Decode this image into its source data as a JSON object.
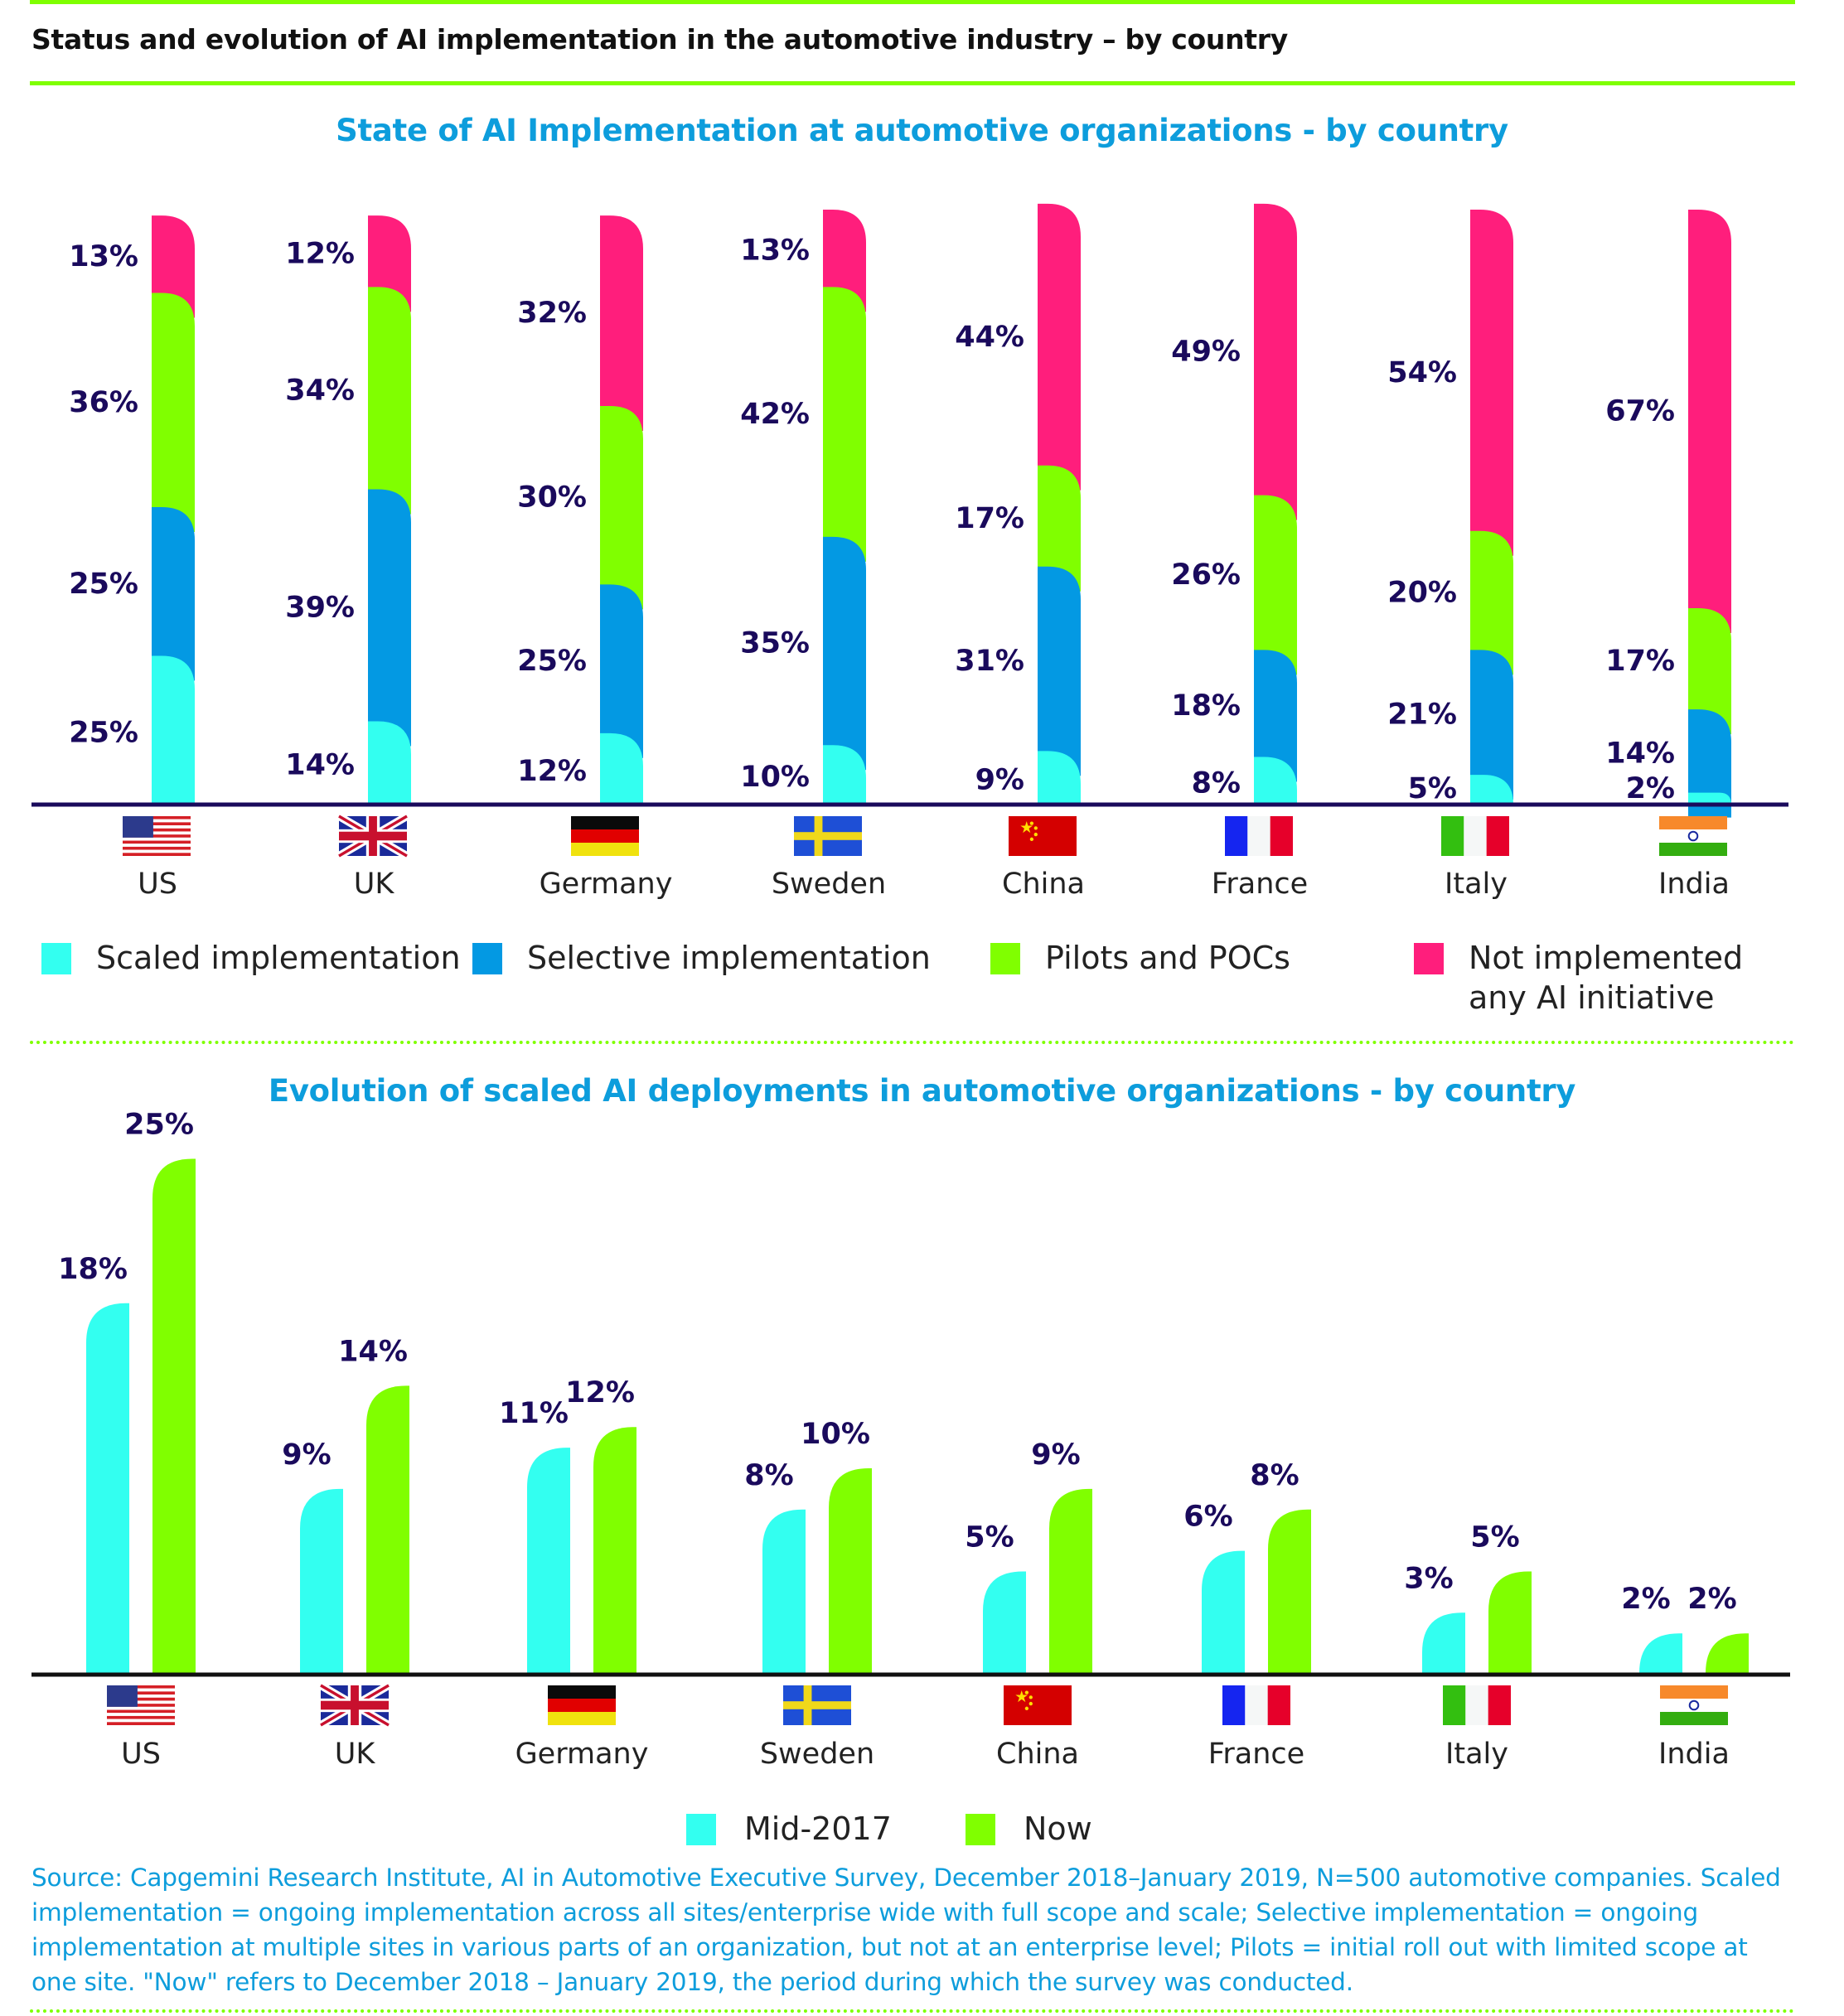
{
  "header": {
    "title": "Status and evolution of AI implementation in the automotive industry – by country"
  },
  "colors": {
    "scaled": "#33fff0",
    "selective": "#0399e3",
    "pilots": "#80ff00",
    "not_implemented": "#ff1e7c",
    "mid2017": "#33fff0",
    "now": "#80ff00",
    "label": "#1a0a5c",
    "axis_top": "#1a0a5c",
    "axis_bottom": "#111111",
    "accent_title": "#0d9ddc"
  },
  "countries": [
    "US",
    "UK",
    "Germany",
    "Sweden",
    "China",
    "France",
    "Italy",
    "India"
  ],
  "flag_icons": [
    "us-flag-icon",
    "uk-flag-icon",
    "germany-flag-icon",
    "sweden-flag-icon",
    "china-flag-icon",
    "france-flag-icon",
    "italy-flag-icon",
    "india-flag-icon"
  ],
  "chart_data": [
    {
      "type": "bar",
      "stacked": true,
      "title": "State of AI Implementation at automotive organizations - by country",
      "xlabel": "",
      "ylabel": "",
      "ylim": [
        0,
        100
      ],
      "grid": false,
      "legend_position": "bottom",
      "categories": [
        "US",
        "UK",
        "Germany",
        "Sweden",
        "China",
        "France",
        "Italy",
        "India"
      ],
      "series": [
        {
          "name": "Scaled implementation",
          "key": "scaled",
          "values": [
            25,
            14,
            12,
            10,
            9,
            8,
            5,
            2
          ]
        },
        {
          "name": "Selective implementation",
          "key": "selective",
          "values": [
            25,
            39,
            25,
            35,
            31,
            18,
            21,
            14
          ]
        },
        {
          "name": "Pilots and POCs",
          "key": "pilots",
          "values": [
            36,
            34,
            30,
            42,
            17,
            26,
            20,
            17
          ]
        },
        {
          "name": "Not implemented any AI initiative",
          "key": "not_implemented",
          "values": [
            13,
            12,
            32,
            13,
            44,
            49,
            54,
            67
          ]
        }
      ],
      "value_suffix": "%"
    },
    {
      "type": "bar",
      "stacked": false,
      "title": "Evolution of scaled AI deployments in automotive organizations - by country",
      "xlabel": "",
      "ylabel": "",
      "ylim": [
        0,
        27
      ],
      "grid": false,
      "legend_position": "bottom",
      "categories": [
        "US",
        "UK",
        "Germany",
        "Sweden",
        "China",
        "France",
        "Italy",
        "India"
      ],
      "series": [
        {
          "name": "Mid-2017",
          "key": "mid2017",
          "values": [
            18,
            9,
            11,
            8,
            5,
            6,
            3,
            2
          ]
        },
        {
          "name": "Now",
          "key": "now",
          "values": [
            25,
            14,
            12,
            10,
            9,
            8,
            5,
            2
          ]
        }
      ],
      "value_suffix": "%"
    }
  ],
  "legend_top": [
    {
      "key": "scaled",
      "label": "Scaled implementation"
    },
    {
      "key": "selective",
      "label": "Selective implementation"
    },
    {
      "key": "pilots",
      "label": "Pilots and POCs"
    },
    {
      "key": "not_implemented",
      "label_line1": "Not implemented",
      "label_line2": "any AI initiative"
    }
  ],
  "legend_bottom": [
    {
      "key": "mid2017",
      "label": "Mid-2017"
    },
    {
      "key": "now",
      "label": "Now"
    }
  ],
  "footnote": "Source: Capgemini Research Institute, AI in Automotive Executive Survey, December 2018–January 2019, N=500 automotive companies. Scaled implementation = ongoing implementation across all sites/enterprise wide with full scope and scale; Selective implementation = ongoing implementation at multiple sites in various parts of an organization, but not at an enterprise level; Pilots = initial roll out with limited scope at one site. \"Now\" refers to December 2018 – January 2019, the period during which the survey was conducted."
}
